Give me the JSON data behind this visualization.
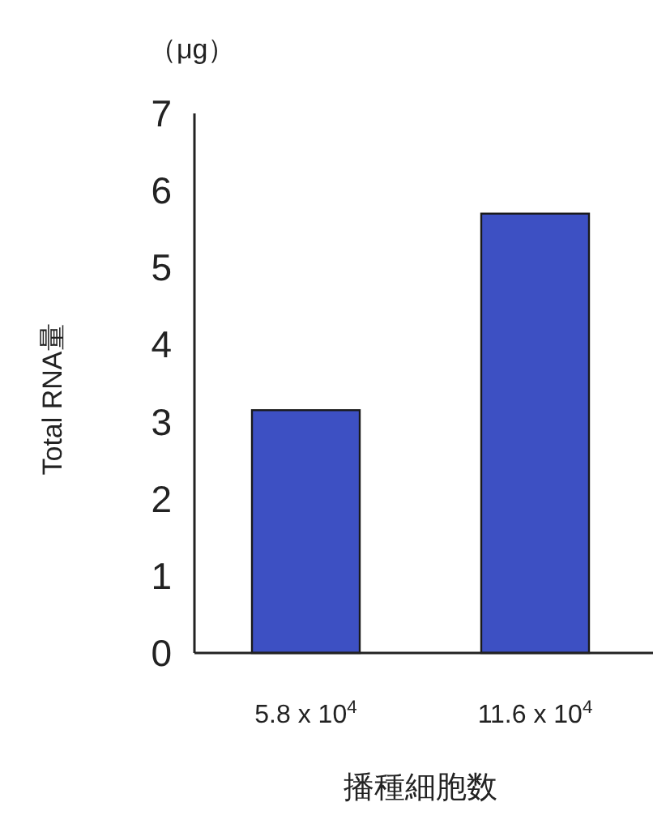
{
  "chart_data": {
    "type": "bar",
    "ylabel": "Total RNA量",
    "xlabel": "播種細胞数",
    "annotations": [
      "（μg）"
    ],
    "categories": [
      "5.8 x 10$^{4}$",
      "11.6 x 10$^{4}$"
    ],
    "values": [
      3.15,
      5.7
    ],
    "color": "#3d50c3",
    "ylim": [
      0,
      7
    ],
    "yticks": [
      0,
      1,
      2,
      3,
      4,
      5,
      6,
      7
    ]
  }
}
